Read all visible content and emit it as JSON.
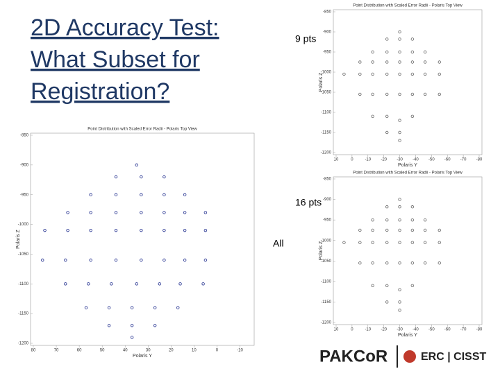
{
  "slide": {
    "title_lines": [
      "2D Accuracy Test:",
      "What Subset for",
      "Registration?"
    ],
    "labels": [
      "9 pts",
      "16 pts",
      "All"
    ],
    "logo": {
      "left": "PAKCoR",
      "right": "ERC | CISST"
    }
  },
  "chart_data": [
    {
      "type": "scatter",
      "title": "Point Distribution with Scaled Error Radii - Polaris Top View",
      "xlabel": "Polaris Y",
      "ylabel": "Polaris Z",
      "color": "#1c2a8c",
      "xlim": [
        80,
        -15
      ],
      "ylim": [
        -1200,
        -850
      ],
      "xticks": [
        80,
        70,
        60,
        50,
        40,
        30,
        20,
        10,
        0,
        -10
      ],
      "yticks": [
        -850,
        -900,
        -950,
        -1000,
        -1050,
        -1100,
        -1150,
        -1200
      ],
      "x": [
        35,
        44,
        33,
        23,
        55,
        44,
        33,
        23,
        14,
        65,
        55,
        44,
        33,
        23,
        14,
        5,
        75,
        65,
        55,
        44,
        33,
        23,
        14,
        5,
        76,
        66,
        55,
        44,
        33,
        23,
        14,
        5,
        66,
        56,
        46,
        35,
        25,
        16,
        6,
        57,
        47,
        37,
        27,
        17,
        47,
        37,
        27,
        37
      ],
      "y": [
        -900,
        -920,
        -920,
        -920,
        -950,
        -950,
        -950,
        -950,
        -950,
        -980,
        -980,
        -980,
        -980,
        -980,
        -980,
        -980,
        -1010,
        -1010,
        -1010,
        -1010,
        -1010,
        -1010,
        -1010,
        -1010,
        -1060,
        -1060,
        -1060,
        -1060,
        -1060,
        -1060,
        -1060,
        -1060,
        -1100,
        -1100,
        -1100,
        -1100,
        -1100,
        -1100,
        -1100,
        -1140,
        -1140,
        -1140,
        -1140,
        -1140,
        -1170,
        -1170,
        -1170,
        -1190
      ]
    },
    {
      "type": "scatter",
      "title": "Point Distribution with Scaled Error Radii - Polaris Top View",
      "xlabel": "Polaris Y",
      "ylabel": "Polaris Z",
      "color": "#666666",
      "xlim": [
        10,
        -80
      ],
      "ylim": [
        -1200,
        -850
      ],
      "xticks": [
        10,
        0,
        -10,
        -20,
        -30,
        -40,
        -50,
        -60,
        -70,
        -80
      ],
      "yticks": [
        -850,
        -900,
        -950,
        -1000,
        -1050,
        -1100,
        -1150,
        -1200
      ],
      "x": [
        -30,
        -22,
        -30,
        -38,
        -13,
        -22,
        -30,
        -38,
        -46,
        -5,
        -13,
        -22,
        -30,
        -38,
        -46,
        -55,
        5,
        -5,
        -13,
        -22,
        -30,
        -38,
        -46,
        -55,
        -5,
        -13,
        -22,
        -30,
        -38,
        -46,
        -55,
        -13,
        -22,
        -30,
        -38,
        -22,
        -30,
        -30
      ],
      "y": [
        -900,
        -918,
        -918,
        -918,
        -950,
        -950,
        -950,
        -950,
        -950,
        -975,
        -975,
        -975,
        -975,
        -975,
        -975,
        -975,
        -1005,
        -1005,
        -1005,
        -1005,
        -1005,
        -1005,
        -1005,
        -1005,
        -1055,
        -1055,
        -1055,
        -1055,
        -1055,
        -1055,
        -1055,
        -1110,
        -1110,
        -1120,
        -1110,
        -1150,
        -1150,
        -1170
      ]
    },
    {
      "type": "scatter",
      "title": "Point Distribution with Scaled Error Radii - Polaris Top View",
      "xlabel": "Polaris Y",
      "ylabel": "Polaris Z",
      "color": "#666666",
      "xlim": [
        10,
        -80
      ],
      "ylim": [
        -1200,
        -850
      ],
      "xticks": [
        10,
        0,
        -10,
        -20,
        -30,
        -40,
        -50,
        -60,
        -70,
        -80
      ],
      "yticks": [
        -850,
        -900,
        -950,
        -1000,
        -1050,
        -1100,
        -1150,
        -1200
      ],
      "x": [
        -30,
        -22,
        -30,
        -38,
        -13,
        -22,
        -30,
        -38,
        -46,
        -5,
        -13,
        -22,
        -30,
        -38,
        -46,
        -55,
        5,
        -5,
        -13,
        -22,
        -30,
        -38,
        -46,
        -55,
        -5,
        -13,
        -22,
        -30,
        -38,
        -46,
        -55,
        -13,
        -22,
        -30,
        -38,
        -22,
        -30,
        -30
      ],
      "y": [
        -900,
        -918,
        -918,
        -918,
        -950,
        -950,
        -950,
        -950,
        -950,
        -975,
        -975,
        -975,
        -975,
        -975,
        -975,
        -975,
        -1005,
        -1005,
        -1005,
        -1005,
        -1005,
        -1005,
        -1005,
        -1005,
        -1055,
        -1055,
        -1055,
        -1055,
        -1055,
        -1055,
        -1055,
        -1110,
        -1110,
        -1120,
        -1110,
        -1150,
        -1150,
        -1170
      ]
    }
  ]
}
